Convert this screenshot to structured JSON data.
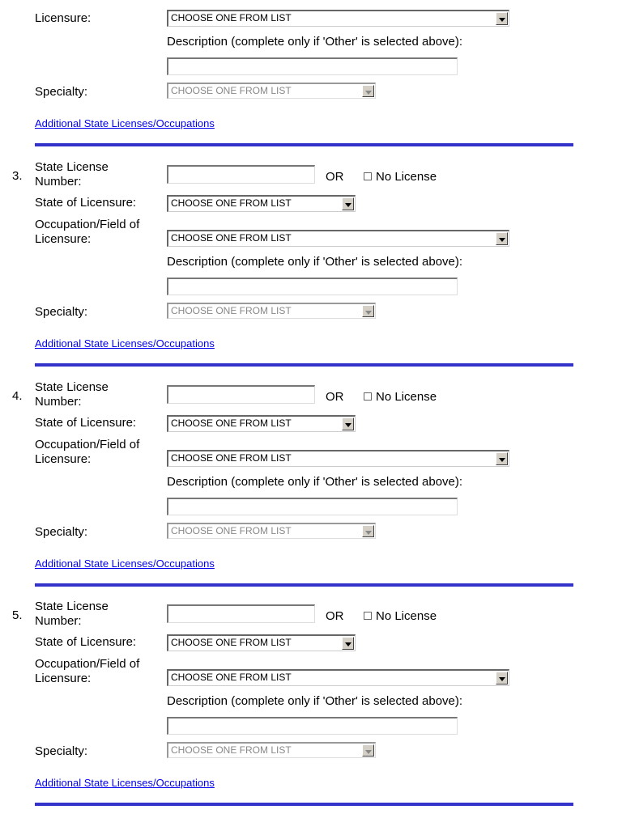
{
  "top_section": {
    "licensure_label": "Licensure:",
    "occupation_value": "CHOOSE ONE FROM LIST",
    "description_label": "Description (complete only if 'Other' is selected above):",
    "description_value": "",
    "specialty_label": "Specialty:",
    "specialty_value": "CHOOSE ONE FROM LIST",
    "additional_link": "Additional State Licenses/Occupations"
  },
  "labels": {
    "license_number_line1": "State License",
    "license_number_line2": "Number:",
    "or": "OR",
    "no_license": "No License",
    "state": "State of Licensure:",
    "occupation_line1": "Occupation/Field of",
    "occupation_line2": "Licensure:",
    "description": "Description (complete only if 'Other' is selected above):",
    "specialty": "Specialty:",
    "additional_link": "Additional State Licenses/Occupations"
  },
  "sections": [
    {
      "number": "3.",
      "license_number": "",
      "no_license_checked": false,
      "state": "CHOOSE ONE FROM LIST",
      "occupation": "CHOOSE ONE FROM LIST",
      "description": "",
      "specialty": "CHOOSE ONE FROM LIST"
    },
    {
      "number": "4.",
      "license_number": "",
      "no_license_checked": false,
      "state": "CHOOSE ONE FROM LIST",
      "occupation": "CHOOSE ONE FROM LIST",
      "description": "",
      "specialty": "CHOOSE ONE FROM LIST"
    },
    {
      "number": "5.",
      "license_number": "",
      "no_license_checked": false,
      "state": "CHOOSE ONE FROM LIST",
      "occupation": "CHOOSE ONE FROM LIST",
      "description": "",
      "specialty": "CHOOSE ONE FROM LIST"
    }
  ],
  "colors": {
    "rule": "#3333cc",
    "link": "#0000ee"
  }
}
